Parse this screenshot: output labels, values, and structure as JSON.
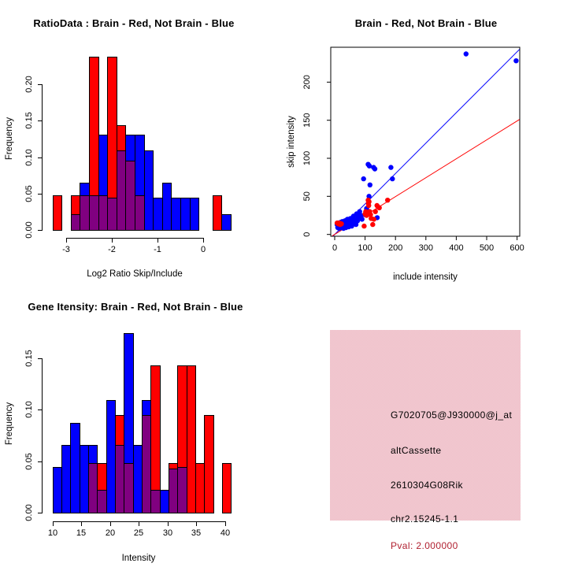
{
  "figure": {
    "background": "#ffffff",
    "colors": {
      "red": "#ff0000",
      "blue": "#0000ff",
      "overlap_purple": "#800080",
      "axis_black": "#000000"
    },
    "legend_meaning": {
      "red": "Brain",
      "blue": "Not Brain"
    }
  },
  "chart_data": [
    {
      "type": "bar",
      "panel": "top-left",
      "title": "RatioData : Brain - Red, Not Brain - Blue",
      "xlabel": "Log2 Ratio Skip/Include",
      "ylabel": "Frequency",
      "xlim": [
        -3.5,
        0.7
      ],
      "ylim": [
        0,
        0.245
      ],
      "bin_width": 0.2,
      "grid": false,
      "x_ticks": [
        {
          "v": -3,
          "label": "-3"
        },
        {
          "v": -2,
          "label": "-2"
        },
        {
          "v": -1,
          "label": "-1"
        },
        {
          "v": 0,
          "label": "0"
        }
      ],
      "y_ticks": [
        {
          "v": 0.0,
          "label": "0.00"
        },
        {
          "v": 0.05,
          "label": "0.05"
        },
        {
          "v": 0.1,
          "label": "0.10"
        },
        {
          "v": 0.15,
          "label": "0.15"
        },
        {
          "v": 0.2,
          "label": "0.20"
        }
      ],
      "bars": [
        {
          "x0": -3.3,
          "red": 0.048,
          "blue": 0
        },
        {
          "x0": -2.9,
          "red": 0.048,
          "blue": 0.022
        },
        {
          "x0": -2.7,
          "red": 0.048,
          "blue": 0.065
        },
        {
          "x0": -2.5,
          "red": 0.238,
          "blue": 0.048
        },
        {
          "x0": -2.3,
          "red": 0.048,
          "blue": 0.131
        },
        {
          "x0": -2.1,
          "red": 0.238,
          "blue": 0.044
        },
        {
          "x0": -1.9,
          "red": 0.144,
          "blue": 0.109
        },
        {
          "x0": -1.7,
          "red": 0.095,
          "blue": 0.131
        },
        {
          "x0": -1.5,
          "red": 0.048,
          "blue": 0.131
        },
        {
          "x0": -1.3,
          "red": 0,
          "blue": 0.109
        },
        {
          "x0": -1.1,
          "red": 0,
          "blue": 0.044
        },
        {
          "x0": -0.9,
          "red": 0,
          "blue": 0.065
        },
        {
          "x0": -0.7,
          "red": 0,
          "blue": 0.044
        },
        {
          "x0": -0.5,
          "red": 0,
          "blue": 0.044
        },
        {
          "x0": -0.3,
          "red": 0,
          "blue": 0.044
        },
        {
          "x0": 0.2,
          "red": 0.048,
          "blue": 0
        },
        {
          "x0": 0.4,
          "red": 0,
          "blue": 0.022
        }
      ]
    },
    {
      "type": "scatter",
      "panel": "top-right",
      "title": "Brain - Red, Not Brain - Blue",
      "xlabel": "include intensity",
      "ylabel": "skip intensity",
      "xlim": [
        -13,
        608
      ],
      "ylim": [
        -2.4,
        246
      ],
      "grid": false,
      "x_ticks": [
        {
          "v": 0,
          "label": "0"
        },
        {
          "v": 100,
          "label": "100"
        },
        {
          "v": 200,
          "label": "200"
        },
        {
          "v": 300,
          "label": "300"
        },
        {
          "v": 400,
          "label": "400"
        },
        {
          "v": 500,
          "label": "500"
        },
        {
          "v": 600,
          "label": "600"
        }
      ],
      "y_ticks": [
        {
          "v": 0,
          "label": "0"
        },
        {
          "v": 50,
          "label": "50"
        },
        {
          "v": 100,
          "label": "100"
        },
        {
          "v": 150,
          "label": "150"
        },
        {
          "v": 200,
          "label": "200"
        }
      ],
      "lines": [
        {
          "name": "fit-line-blue",
          "color": "blue",
          "from": [
            -5,
            -2
          ],
          "to": [
            608,
            243
          ]
        },
        {
          "name": "fit-line-red",
          "color": "red",
          "from": [
            -8,
            -2
          ],
          "to": [
            608,
            151
          ]
        }
      ],
      "points_blue": [
        [
          8,
          13
        ],
        [
          10,
          9
        ],
        [
          11,
          15
        ],
        [
          13,
          11
        ],
        [
          15,
          8
        ],
        [
          16,
          14
        ],
        [
          18,
          12
        ],
        [
          20,
          16
        ],
        [
          21,
          9
        ],
        [
          23,
          13
        ],
        [
          25,
          10
        ],
        [
          25,
          17
        ],
        [
          27,
          14
        ],
        [
          29,
          8
        ],
        [
          30,
          15
        ],
        [
          32,
          11
        ],
        [
          34,
          18
        ],
        [
          35,
          13
        ],
        [
          37,
          9
        ],
        [
          38,
          16
        ],
        [
          40,
          12
        ],
        [
          42,
          20
        ],
        [
          44,
          14
        ],
        [
          46,
          10
        ],
        [
          48,
          17
        ],
        [
          50,
          13
        ],
        [
          52,
          21
        ],
        [
          54,
          15
        ],
        [
          56,
          11
        ],
        [
          58,
          18
        ],
        [
          60,
          14
        ],
        [
          62,
          24
        ],
        [
          65,
          16
        ],
        [
          67,
          20
        ],
        [
          70,
          13
        ],
        [
          72,
          27
        ],
        [
          75,
          18
        ],
        [
          78,
          23
        ],
        [
          82,
          30
        ],
        [
          86,
          25
        ],
        [
          90,
          20
        ],
        [
          100,
          26
        ],
        [
          105,
          34
        ],
        [
          95,
          73
        ],
        [
          110,
          92
        ],
        [
          114,
          90
        ],
        [
          128,
          88
        ],
        [
          132,
          86
        ],
        [
          113,
          50
        ],
        [
          116,
          65
        ],
        [
          140,
          22
        ],
        [
          185,
          88
        ],
        [
          190,
          73
        ],
        [
          432,
          237
        ],
        [
          597,
          228
        ]
      ],
      "points_red": [
        [
          8,
          15
        ],
        [
          12,
          14
        ],
        [
          15,
          15
        ],
        [
          18,
          13
        ],
        [
          22,
          14
        ],
        [
          97,
          11
        ],
        [
          100,
          27
        ],
        [
          102,
          30
        ],
        [
          105,
          25
        ],
        [
          108,
          28
        ],
        [
          110,
          45
        ],
        [
          111,
          41
        ],
        [
          112,
          38
        ],
        [
          113,
          43
        ],
        [
          115,
          30
        ],
        [
          118,
          26
        ],
        [
          120,
          21
        ],
        [
          125,
          13
        ],
        [
          129,
          20
        ],
        [
          134,
          30
        ],
        [
          139,
          38
        ],
        [
          143,
          36
        ],
        [
          147,
          35
        ],
        [
          174,
          45
        ]
      ]
    },
    {
      "type": "bar",
      "panel": "bottom-left",
      "title": "Gene Itensity: Brain - Red, Not Brain - Blue",
      "xlabel": "Intensity",
      "ylabel": "Frequency",
      "xlim": [
        9.5,
        41.5
      ],
      "ylim": [
        0,
        0.18
      ],
      "bin_width": 1.55,
      "grid": false,
      "x_ticks": [
        {
          "v": 10,
          "label": "10"
        },
        {
          "v": 15,
          "label": "15"
        },
        {
          "v": 20,
          "label": "20"
        },
        {
          "v": 25,
          "label": "25"
        },
        {
          "v": 30,
          "label": "30"
        },
        {
          "v": 35,
          "label": "35"
        },
        {
          "v": 40,
          "label": "40"
        }
      ],
      "y_ticks": [
        {
          "v": 0.0,
          "label": "0.00"
        },
        {
          "v": 0.05,
          "label": "0.05"
        },
        {
          "v": 0.1,
          "label": "0.10"
        },
        {
          "v": 0.15,
          "label": "0.15"
        }
      ],
      "bars": [
        {
          "x0": 10.0,
          "red": 0,
          "blue": 0.044
        },
        {
          "x0": 11.55,
          "red": 0,
          "blue": 0.066
        },
        {
          "x0": 13.1,
          "red": 0,
          "blue": 0.087
        },
        {
          "x0": 14.65,
          "red": 0,
          "blue": 0.066
        },
        {
          "x0": 16.2,
          "red": 0.048,
          "blue": 0.066
        },
        {
          "x0": 17.75,
          "red": 0.048,
          "blue": 0.022
        },
        {
          "x0": 19.3,
          "red": 0,
          "blue": 0.109
        },
        {
          "x0": 20.85,
          "red": 0.095,
          "blue": 0.066
        },
        {
          "x0": 22.4,
          "red": 0.048,
          "blue": 0.174
        },
        {
          "x0": 23.95,
          "red": 0,
          "blue": 0.066
        },
        {
          "x0": 25.5,
          "red": 0.095,
          "blue": 0.109
        },
        {
          "x0": 27.05,
          "red": 0.143,
          "blue": 0.022
        },
        {
          "x0": 28.6,
          "red": 0,
          "blue": 0.022
        },
        {
          "x0": 30.15,
          "red": 0.048,
          "blue": 0.043
        },
        {
          "x0": 31.7,
          "red": 0.143,
          "blue": 0.044
        },
        {
          "x0": 33.25,
          "red": 0.143,
          "blue": 0
        },
        {
          "x0": 34.8,
          "red": 0.048,
          "blue": 0
        },
        {
          "x0": 36.35,
          "red": 0.095,
          "blue": 0
        },
        {
          "x0": 39.45,
          "red": 0.048,
          "blue": 0
        }
      ]
    }
  ],
  "info_box": {
    "probe_id": "G7020705@J930000@j_at",
    "event_type": "altCassette",
    "gene": "2610304G08Rik",
    "location": "chr2.15245-1.1",
    "pval": "Pval: 2.000000",
    "bg_color": "#f0c4ce",
    "text_color": "#000000",
    "pval_color": "#b02030"
  }
}
